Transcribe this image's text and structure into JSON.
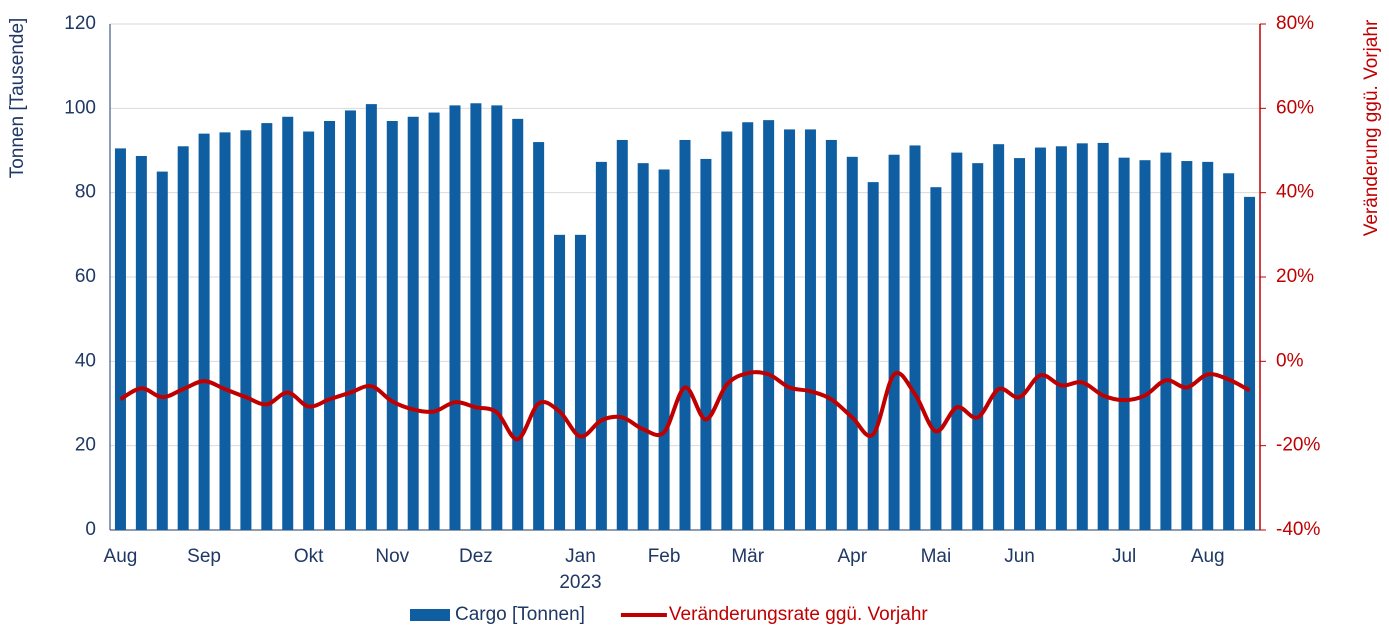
{
  "chart_data": {
    "type": "bar",
    "y_axis_label": "Tonnen [Tausende]",
    "y2_axis_label": "Veränderung ggü. Vorjahr",
    "categories": [
      "Aug",
      null,
      null,
      null,
      "Sep",
      null,
      null,
      null,
      null,
      "Okt",
      null,
      null,
      null,
      "Nov",
      null,
      null,
      null,
      "Dez",
      null,
      null,
      null,
      null,
      "Jan",
      null,
      null,
      null,
      "Feb",
      null,
      null,
      null,
      "Mär",
      null,
      null,
      null,
      null,
      "Apr",
      null,
      null,
      null,
      "Mai",
      null,
      null,
      null,
      "Jun",
      null,
      null,
      null,
      null,
      "Jul",
      null,
      null,
      null,
      "Aug",
      null,
      null
    ],
    "annotations": [
      "2023"
    ],
    "series": [
      {
        "name": "Cargo [Tonnen]",
        "type": "bar",
        "color": "#0f5ea1",
        "values": [
          90.5,
          88.7,
          85,
          91,
          94,
          94.3,
          94.8,
          96.5,
          98,
          94.5,
          97,
          99.5,
          101,
          97,
          98,
          99,
          100.7,
          101.2,
          100.7,
          97.5,
          92,
          70,
          70,
          87.3,
          92.5,
          87,
          85.5,
          92.5,
          88,
          94.5,
          96.7,
          97.2,
          95,
          95,
          92.5,
          88.5,
          82.5,
          89,
          91.2,
          81.3,
          89.5,
          87,
          91.5,
          88.2,
          90.7,
          91,
          91.7,
          91.8,
          88.3,
          87.7,
          89.5,
          87.5,
          87.3,
          84.6,
          79
        ]
      },
      {
        "name": "Veränderungsrate ggü. Vorjahr",
        "type": "line",
        "axis": "y2",
        "color": "#c00000",
        "values": [
          -9,
          -6.4,
          -8.5,
          -6.6,
          -4.7,
          -6.6,
          -8.5,
          -10.2,
          -7.4,
          -10.7,
          -9,
          -7.4,
          -5.9,
          -9.5,
          -11.4,
          -11.9,
          -9.7,
          -10.9,
          -12.1,
          -18.5,
          -10,
          -11.9,
          -17.8,
          -14,
          -13.3,
          -16.1,
          -16.8,
          -6.2,
          -13.8,
          -5.5,
          -2.8,
          -3.1,
          -6.2,
          -7.1,
          -9,
          -13.3,
          -17.3,
          -3.1,
          -7.8,
          -16.6,
          -10.9,
          -13.3,
          -6.6,
          -8.5,
          -3.3,
          -5.7,
          -5,
          -8.1,
          -9.2,
          -8.1,
          -4.5,
          -6.2,
          -3.1,
          -4.3,
          -6.9
        ]
      }
    ],
    "ylim": [
      0,
      120
    ],
    "yticks": [
      0,
      20,
      40,
      60,
      80,
      100,
      120
    ],
    "y2lim": [
      -40,
      80
    ],
    "y2ticks": [
      {
        "value": -40,
        "label": "-40%"
      },
      {
        "value": -20,
        "label": "-20%"
      },
      {
        "value": 0,
        "label": "0%"
      },
      {
        "value": 20,
        "label": "20%"
      },
      {
        "value": 40,
        "label": "40%"
      },
      {
        "value": 60,
        "label": "60%"
      },
      {
        "value": 80,
        "label": "80%"
      }
    ],
    "grid": true,
    "legend": "bottom"
  }
}
